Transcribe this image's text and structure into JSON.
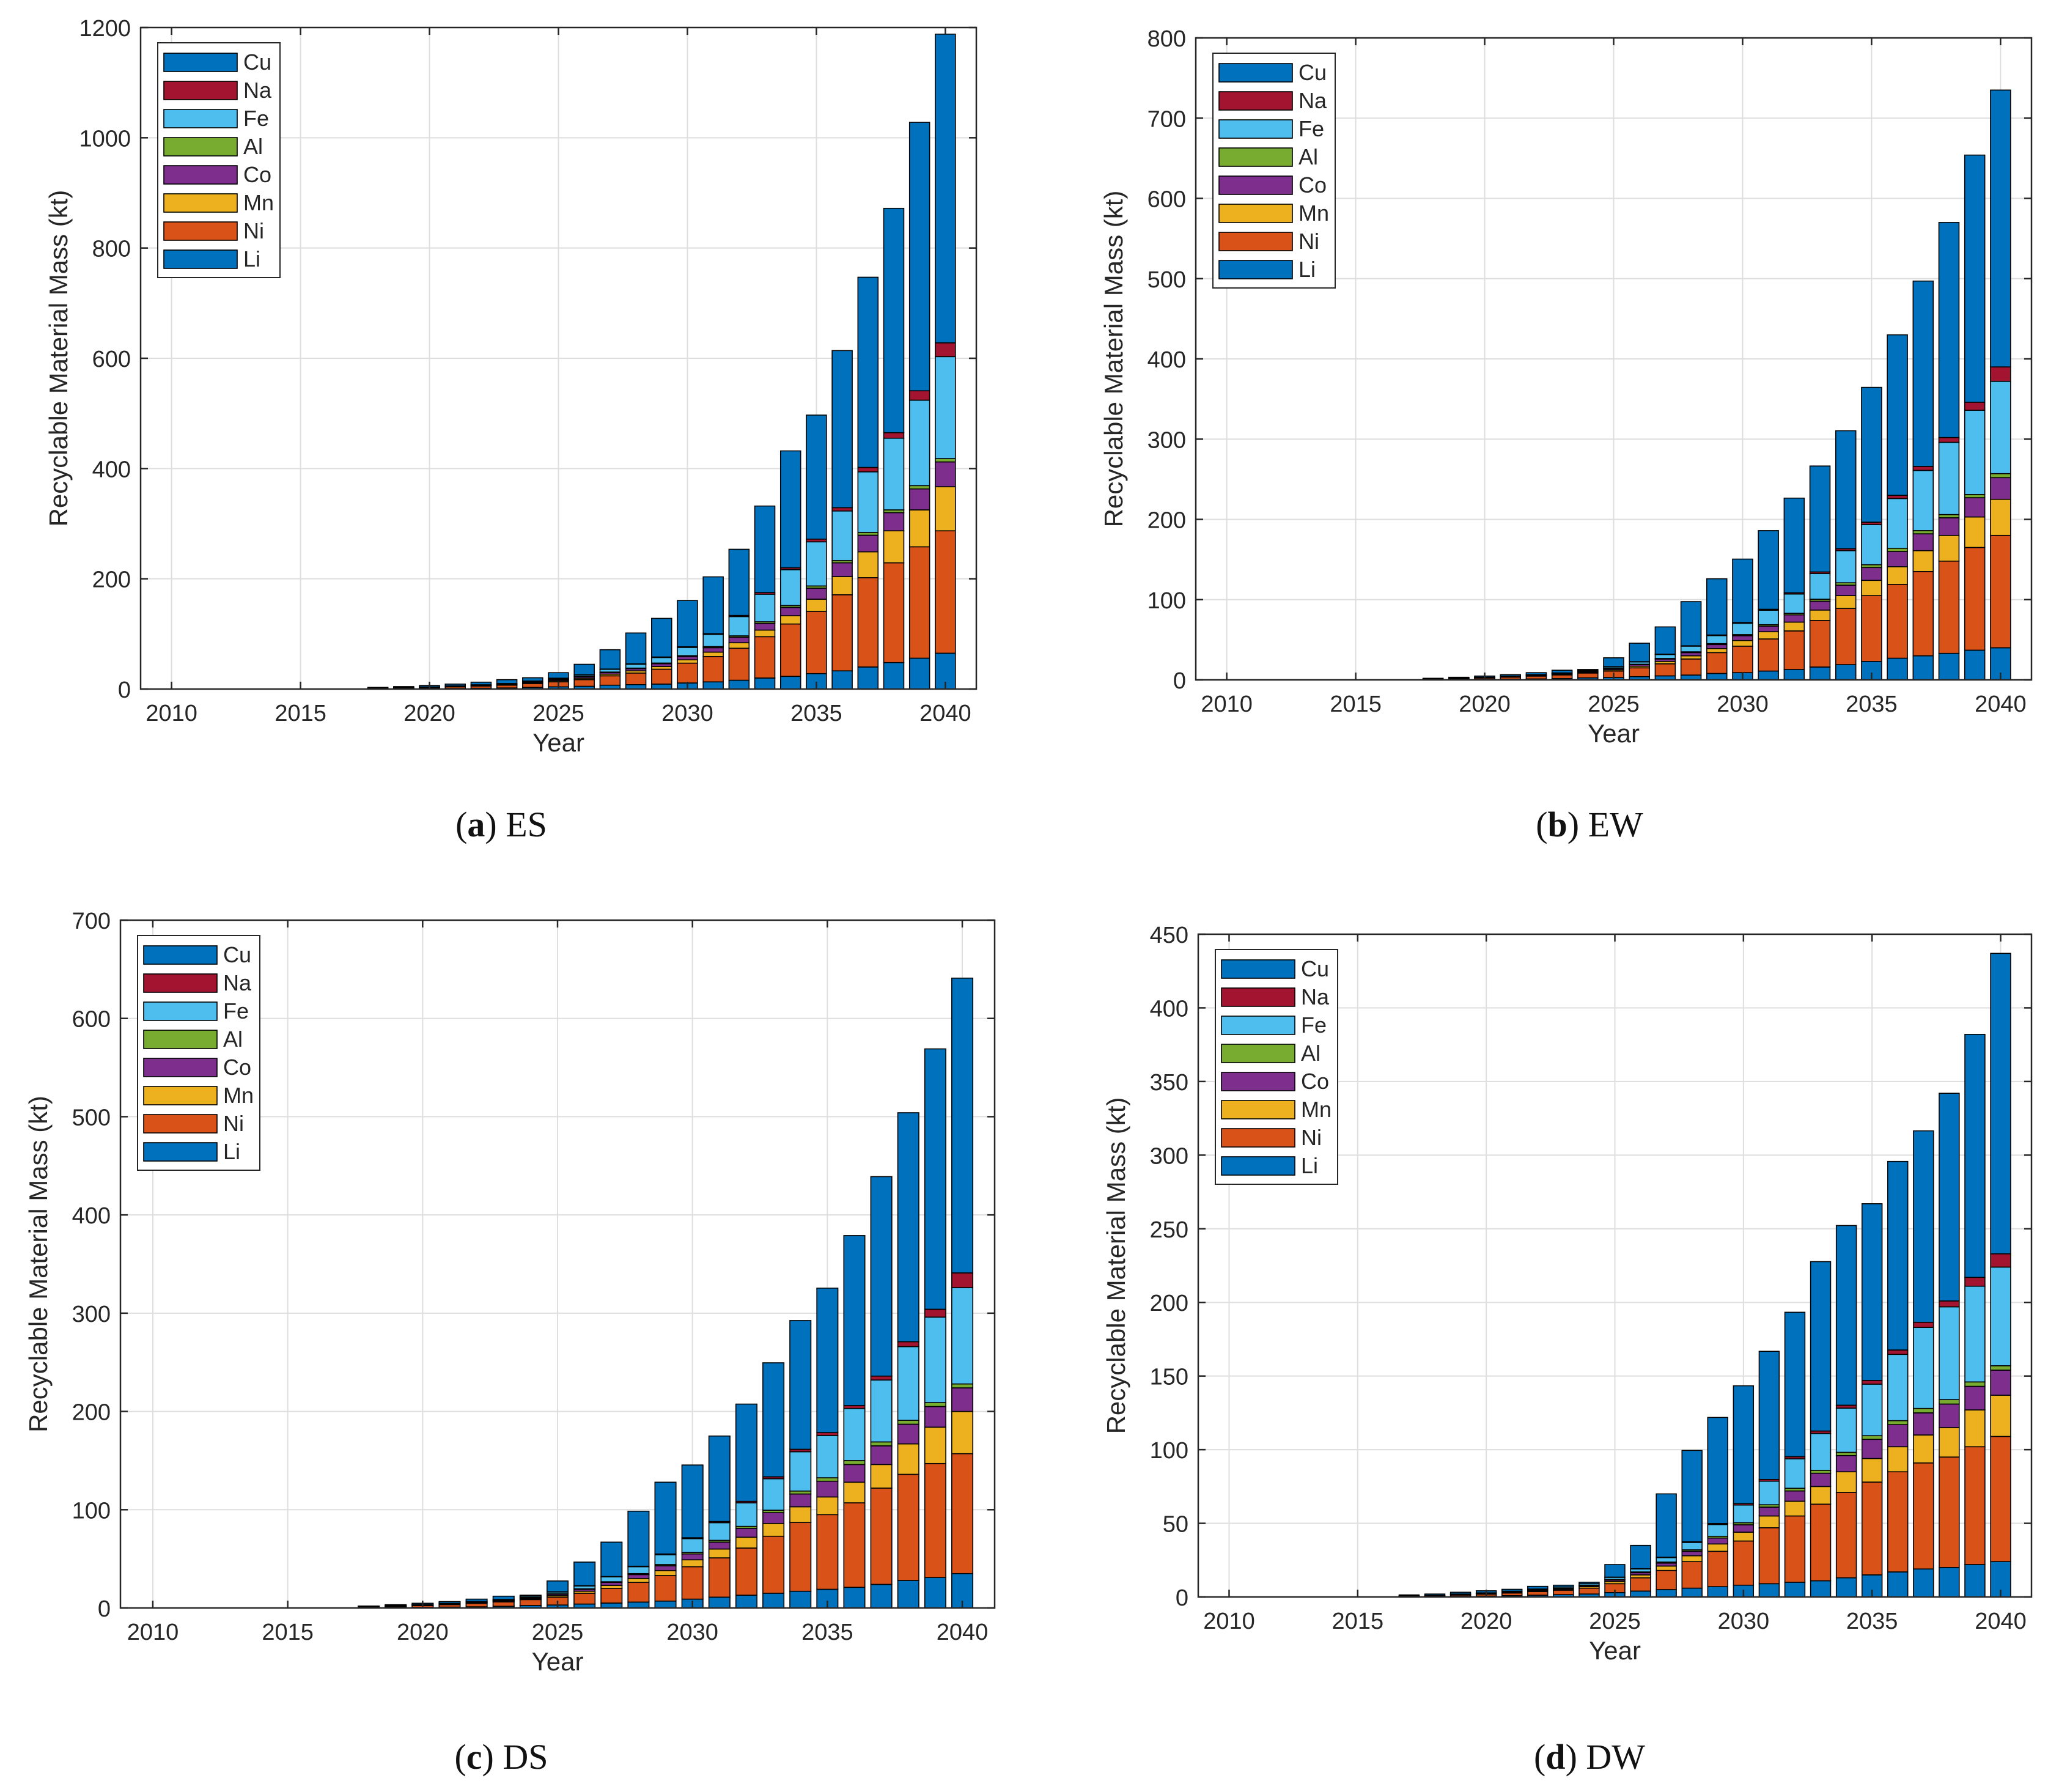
{
  "legend_order": [
    "Cu",
    "Na",
    "Fe",
    "Al",
    "Co",
    "Mn",
    "Ni",
    "Li"
  ],
  "colors": {
    "Li": "#0072BD",
    "Ni": "#D95319",
    "Mn": "#EDB120",
    "Co": "#7E2F8E",
    "Al": "#77AC30",
    "Fe": "#4DBEEE",
    "Na": "#A2142F",
    "Cu": "#0072BD"
  },
  "chart_data": [
    {
      "type": "bar",
      "stacked": true,
      "caption": {
        "letter": "a",
        "scenario": "ES"
      },
      "xlabel": "Year",
      "ylabel": "Recyclable Material Mass (kt)",
      "xlim": [
        2008.8,
        2041.2
      ],
      "ylim": [
        0,
        1200
      ],
      "yticks": [
        0,
        200,
        400,
        600,
        800,
        1000,
        1200
      ],
      "xticks": [
        2010,
        2015,
        2020,
        2025,
        2030,
        2035,
        2040
      ],
      "grid": true,
      "legend_position": "top-left",
      "years": [
        2018,
        2019,
        2020,
        2021,
        2022,
        2023,
        2024,
        2025,
        2026,
        2027,
        2028,
        2029,
        2030,
        2031,
        2032,
        2033,
        2034,
        2035,
        2036,
        2037,
        2038,
        2039,
        2040
      ],
      "series": [
        {
          "name": "Li",
          "values": [
            0.3,
            0.5,
            0.8,
            1,
            1.5,
            2,
            3,
            4,
            5,
            7,
            8,
            9,
            11,
            13,
            16,
            20,
            23,
            28,
            33,
            40,
            48,
            56,
            65
          ]
        },
        {
          "name": "Ni",
          "values": [
            1,
            1.5,
            2,
            3,
            4,
            5,
            7,
            9,
            12,
            17,
            21,
            27,
            36,
            46,
            58,
            75,
            95,
            113,
            138,
            162,
            181,
            202,
            222
          ]
        },
        {
          "name": "Mn",
          "values": [
            0.2,
            0.3,
            0.4,
            0.6,
            0.8,
            1,
            1.4,
            2,
            2.5,
            3,
            4,
            5,
            6,
            8,
            10,
            12,
            15,
            22,
            33,
            47,
            58,
            67,
            80
          ]
        },
        {
          "name": "Co",
          "values": [
            0.1,
            0.2,
            0.3,
            0.4,
            0.6,
            0.8,
            1.2,
            2,
            2.5,
            3,
            4,
            5,
            6,
            8,
            10,
            12,
            15,
            20,
            25,
            30,
            33,
            38,
            45
          ]
        },
        {
          "name": "Al",
          "values": [
            0.1,
            0.1,
            0.1,
            0.2,
            0.2,
            0.3,
            0.4,
            0.5,
            0.6,
            0.8,
            1,
            1.2,
            1.5,
            2,
            2.5,
            3,
            3.5,
            4,
            4,
            5,
            5,
            6,
            6
          ]
        },
        {
          "name": "Fe",
          "values": [
            0.1,
            0.2,
            0.3,
            0.5,
            0.7,
            1,
            1.5,
            2,
            3,
            5,
            7,
            10,
            15,
            22,
            35,
            50,
            65,
            80,
            90,
            110,
            130,
            155,
            185
          ]
        },
        {
          "name": "Na",
          "values": [
            0,
            0,
            0,
            0,
            0,
            0,
            0,
            0.2,
            0.3,
            0.5,
            0.7,
            1,
            1.2,
            1.5,
            2,
            3,
            3.5,
            5,
            6,
            8,
            10,
            17,
            25
          ]
        },
        {
          "name": "Cu",
          "values": [
            1.2,
            1.7,
            2.6,
            3.3,
            4.7,
            6.9,
            6,
            10,
            19,
            35,
            56,
            70,
            84,
            103,
            120,
            157,
            212,
            225,
            285,
            345,
            407,
            487,
            560
          ]
        }
      ]
    },
    {
      "type": "bar",
      "stacked": true,
      "caption": {
        "letter": "b",
        "scenario": "EW"
      },
      "xlabel": "Year",
      "ylabel": "Recyclable Material Mass (kt)",
      "xlim": [
        2008.8,
        2041.2
      ],
      "ylim": [
        0,
        800
      ],
      "yticks": [
        0,
        100,
        200,
        300,
        400,
        500,
        600,
        700,
        800
      ],
      "xticks": [
        2010,
        2015,
        2020,
        2025,
        2030,
        2035,
        2040
      ],
      "grid": true,
      "legend_position": "top-left",
      "years": [
        2018,
        2019,
        2020,
        2021,
        2022,
        2023,
        2024,
        2025,
        2026,
        2027,
        2028,
        2029,
        2030,
        2031,
        2032,
        2033,
        2034,
        2035,
        2036,
        2037,
        2038,
        2039,
        2040
      ],
      "series": [
        {
          "name": "Li",
          "values": [
            0.2,
            0.4,
            0.6,
            0.9,
            1.2,
            1.7,
            2.5,
            3,
            4,
            5,
            6,
            8,
            9,
            11,
            13,
            16,
            19,
            23,
            27,
            30,
            33,
            37,
            40
          ]
        },
        {
          "name": "Ni",
          "values": [
            0.8,
            1.2,
            1.8,
            2.5,
            3.5,
            4.5,
            6,
            8,
            11,
            15,
            20,
            26,
            33,
            40,
            48,
            58,
            70,
            82,
            92,
            105,
            115,
            128,
            140
          ]
        },
        {
          "name": "Mn",
          "values": [
            0.1,
            0.2,
            0.3,
            0.4,
            0.6,
            0.8,
            1,
            1.5,
            2,
            3,
            4,
            5,
            7,
            9,
            11,
            13,
            16,
            19,
            22,
            26,
            32,
            38,
            45
          ]
        },
        {
          "name": "Co",
          "values": [
            0.1,
            0.2,
            0.3,
            0.4,
            0.5,
            0.7,
            1,
            1.5,
            2,
            3,
            4,
            5,
            6,
            7,
            9,
            11,
            13,
            16,
            19,
            21,
            22,
            24,
            27
          ]
        },
        {
          "name": "Al",
          "values": [
            0,
            0.1,
            0.1,
            0.1,
            0.2,
            0.2,
            0.3,
            0.4,
            0.5,
            0.7,
            1,
            1.2,
            1.5,
            1.8,
            2,
            2.5,
            3,
            3.5,
            4,
            4,
            4,
            4,
            5
          ]
        },
        {
          "name": "Fe",
          "values": [
            0.1,
            0.2,
            0.3,
            0.4,
            0.6,
            0.8,
            1.2,
            2,
            3,
            5,
            7,
            10,
            14,
            18,
            24,
            32,
            40,
            50,
            62,
            75,
            90,
            105,
            115
          ]
        },
        {
          "name": "Na",
          "values": [
            0,
            0,
            0,
            0,
            0,
            0,
            0,
            0.1,
            0.2,
            0.3,
            0.5,
            0.8,
            1,
            1.2,
            1.5,
            2,
            2.5,
            3,
            4,
            5,
            6,
            10,
            18
          ]
        },
        {
          "name": "Cu",
          "values": [
            0.7,
            1,
            1.4,
            1.8,
            2.4,
            3.3,
            1,
            11,
            23,
            34,
            55,
            70,
            79,
            98,
            118,
            132,
            147,
            168,
            200,
            231,
            268,
            308,
            345
          ]
        }
      ]
    },
    {
      "type": "bar",
      "stacked": true,
      "caption": {
        "letter": "c",
        "scenario": "DS"
      },
      "xlabel": "Year",
      "ylabel": "Recyclable Material Mass (kt)",
      "xlim": [
        2008.8,
        2041.2
      ],
      "ylim": [
        0,
        700
      ],
      "yticks": [
        0,
        100,
        200,
        300,
        400,
        500,
        600,
        700
      ],
      "xticks": [
        2010,
        2015,
        2020,
        2025,
        2030,
        2035,
        2040
      ],
      "grid": true,
      "legend_position": "top-left",
      "years": [
        2018,
        2019,
        2020,
        2021,
        2022,
        2023,
        2024,
        2025,
        2026,
        2027,
        2028,
        2029,
        2030,
        2031,
        2032,
        2033,
        2034,
        2035,
        2036,
        2037,
        2038,
        2039,
        2040
      ],
      "series": [
        {
          "name": "Li",
          "values": [
            0.2,
            0.4,
            0.6,
            0.9,
            1.2,
            1.7,
            2.5,
            3,
            4,
            5,
            6,
            7,
            9,
            11,
            13,
            15,
            17,
            19,
            21,
            24,
            28,
            31,
            35
          ]
        },
        {
          "name": "Ni",
          "values": [
            0.8,
            1.2,
            1.8,
            2.5,
            3.5,
            4.5,
            6,
            8,
            11,
            15,
            20,
            26,
            33,
            40,
            48,
            58,
            70,
            76,
            86,
            98,
            108,
            116,
            122
          ]
        },
        {
          "name": "Mn",
          "values": [
            0.1,
            0.2,
            0.3,
            0.4,
            0.6,
            0.8,
            1,
            1.5,
            2,
            3,
            4,
            5,
            7,
            9,
            11,
            13,
            16,
            18,
            21,
            24,
            31,
            37,
            43
          ]
        },
        {
          "name": "Co",
          "values": [
            0.1,
            0.2,
            0.3,
            0.4,
            0.5,
            0.7,
            1,
            1.5,
            2,
            3,
            4,
            5,
            6,
            7,
            9,
            11,
            13,
            16,
            18,
            19,
            20,
            21,
            24
          ]
        },
        {
          "name": "Al",
          "values": [
            0,
            0.1,
            0.1,
            0.1,
            0.2,
            0.2,
            0.3,
            0.4,
            0.5,
            0.7,
            1,
            1.2,
            1.5,
            1.8,
            2,
            2.5,
            3,
            3.5,
            4,
            4,
            4,
            4,
            4
          ]
        },
        {
          "name": "Fe",
          "values": [
            0.1,
            0.2,
            0.3,
            0.4,
            0.6,
            0.8,
            1.2,
            2,
            3,
            5,
            7,
            10,
            14,
            18,
            24,
            32,
            40,
            43,
            53,
            63,
            75,
            87,
            98
          ]
        },
        {
          "name": "Na",
          "values": [
            0,
            0,
            0,
            0,
            0,
            0,
            0,
            0.1,
            0.2,
            0.3,
            0.5,
            0.8,
            1,
            1.2,
            1.5,
            2,
            2.5,
            3,
            3,
            4,
            5,
            8,
            15
          ]
        },
        {
          "name": "Cu",
          "values": [
            0.7,
            1,
            1.4,
            1.8,
            2.4,
            3.3,
            1,
            11,
            24,
            35,
            56,
            73,
            74,
            87,
            99,
            116,
            131,
            147,
            173,
            203,
            233,
            265,
            300
          ]
        }
      ]
    },
    {
      "type": "bar",
      "stacked": true,
      "caption": {
        "letter": "d",
        "scenario": "DW"
      },
      "xlabel": "Year",
      "ylabel": "Recyclable Material Mass (kt)",
      "xlim": [
        2008.8,
        2041.2
      ],
      "ylim": [
        0,
        450
      ],
      "yticks": [
        0,
        50,
        100,
        150,
        200,
        250,
        300,
        350,
        400,
        450
      ],
      "xticks": [
        2010,
        2015,
        2020,
        2025,
        2030,
        2035,
        2040
      ],
      "grid": true,
      "legend_position": "top-left",
      "years": [
        2017,
        2018,
        2019,
        2020,
        2021,
        2022,
        2023,
        2024,
        2025,
        2026,
        2027,
        2028,
        2029,
        2030,
        2031,
        2032,
        2033,
        2034,
        2035,
        2036,
        2037,
        2038,
        2039,
        2040
      ],
      "series": [
        {
          "name": "Li",
          "values": [
            0.1,
            0.2,
            0.4,
            0.6,
            0.9,
            1.2,
            1.6,
            2,
            3,
            4,
            5,
            6,
            7,
            8,
            9,
            10,
            11,
            13,
            15,
            17,
            19,
            20,
            22,
            24
          ]
        },
        {
          "name": "Ni",
          "values": [
            0.4,
            0.6,
            0.9,
            1.3,
            1.8,
            2.5,
            3,
            4,
            6,
            9,
            13,
            18,
            24,
            30,
            38,
            45,
            52,
            58,
            63,
            68,
            72,
            75,
            80,
            85
          ]
        },
        {
          "name": "Mn",
          "values": [
            0.1,
            0.1,
            0.2,
            0.3,
            0.4,
            0.5,
            0.7,
            1,
            1.5,
            2,
            3,
            4,
            5,
            6,
            8,
            10,
            12,
            14,
            16,
            17,
            19,
            20,
            25,
            28
          ]
        },
        {
          "name": "Co",
          "values": [
            0.1,
            0.1,
            0.2,
            0.2,
            0.3,
            0.4,
            0.5,
            0.7,
            1,
            1.5,
            2,
            3,
            4,
            5,
            6,
            7,
            9,
            11,
            13,
            15,
            15,
            16,
            16,
            17
          ]
        },
        {
          "name": "Al",
          "values": [
            0,
            0,
            0.1,
            0.1,
            0.1,
            0.2,
            0.2,
            0.3,
            0.4,
            0.5,
            0.7,
            1,
            1.2,
            1.4,
            1.6,
            1.8,
            2,
            2.2,
            2.5,
            2.7,
            3,
            3,
            3,
            3
          ]
        },
        {
          "name": "Fe",
          "values": [
            0.1,
            0.1,
            0.2,
            0.3,
            0.4,
            0.6,
            0.8,
            1,
            1.5,
            2,
            3,
            5,
            8,
            12,
            16,
            20,
            25,
            30,
            35,
            45,
            55,
            63,
            65,
            67
          ]
        },
        {
          "name": "Na",
          "values": [
            0,
            0,
            0,
            0,
            0,
            0,
            0,
            0,
            0.1,
            0.2,
            0.3,
            0.5,
            0.7,
            1,
            1.2,
            1.5,
            1.7,
            2,
            2.5,
            3,
            3.5,
            4,
            6,
            9
          ]
        },
        {
          "name": "Cu",
          "values": [
            0.6,
            0.9,
            1.2,
            1.4,
            1.3,
            1.8,
            1.2,
            1,
            8.5,
            15.8,
            43,
            62,
            72,
            80,
            87,
            98,
            115,
            122,
            120,
            128,
            130,
            141,
            165,
            204
          ]
        }
      ]
    }
  ]
}
